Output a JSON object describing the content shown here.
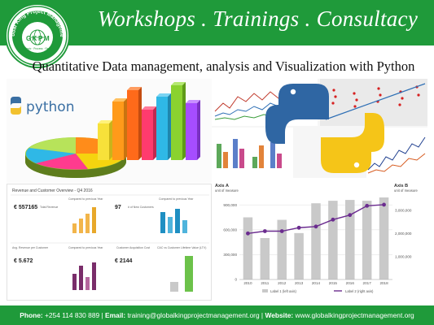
{
  "header": {
    "title": "Workshops . Trainings . Consultacy",
    "logo": {
      "ring_text": "Global King Project Management",
      "initials": [
        "G",
        "K",
        "P",
        "M"
      ],
      "tagline": "Strategic · Process · Results"
    }
  },
  "subtitle": "Quantitative Data management, analysis and Visualization with Python",
  "collage": {
    "python_word": "python",
    "dashboard": {
      "title": "Revenue and Customer Overview - Q4 2016",
      "kpis": [
        {
          "value": "€ 557165",
          "label": "Total Revenue"
        },
        {
          "value": "97",
          "label": "# of New Customers"
        },
        {
          "value": "€ 5.672",
          "label": "Avg. Revenue per Customer"
        },
        {
          "value": "€ 2144",
          "label": "Customer Acquisition Cost"
        }
      ],
      "section_labels": [
        "Compared to previous Year",
        "Compared to previous Year",
        "Compared to previous Year",
        "CAC vs Customer Lifetime Value (LTV)"
      ]
    },
    "combo_chart": {
      "axis_a_title": "Axis A",
      "axis_a_unit": "unit of measure",
      "axis_b_title": "Axis B",
      "axis_b_unit": "unit of measure",
      "legend_bar": "Label 1 (left axis)",
      "legend_line": "Label 2 (right axis)"
    }
  },
  "footer": {
    "phone_label": "Phone:",
    "phone": "+254 114 830 889",
    "email_label": "Email:",
    "email": "training@globalkingprojectmanagement.org",
    "website_label": "Website:",
    "website": "www.globalkingprojectmanagement.org"
  },
  "chart_data": {
    "type": "bar",
    "categories": [
      "2010",
      "2011",
      "2012",
      "2013",
      "2014",
      "2015",
      "2016",
      "2017",
      "2018"
    ],
    "series": [
      {
        "name": "Label 1 (left axis)",
        "values": [
          750000,
          500000,
          720000,
          560000,
          920000,
          950000,
          960000,
          950000,
          990000
        ]
      },
      {
        "name": "Label 2 (right axis)",
        "values": [
          2000000,
          2100000,
          2100000,
          2250000,
          2300000,
          2600000,
          2800000,
          3200000,
          3250000
        ]
      }
    ],
    "y_left_ticks": [
      "0",
      "300,000",
      "600,000",
      "900,000"
    ],
    "y_left_range": [
      0,
      1000000
    ],
    "y_right_ticks": [
      "1,000,000",
      "2,000,000",
      "3,000,000"
    ],
    "y_right_range": [
      0,
      3600000
    ],
    "colors": {
      "bars": "#c9c9c9",
      "line": "#6b2c8f"
    }
  }
}
